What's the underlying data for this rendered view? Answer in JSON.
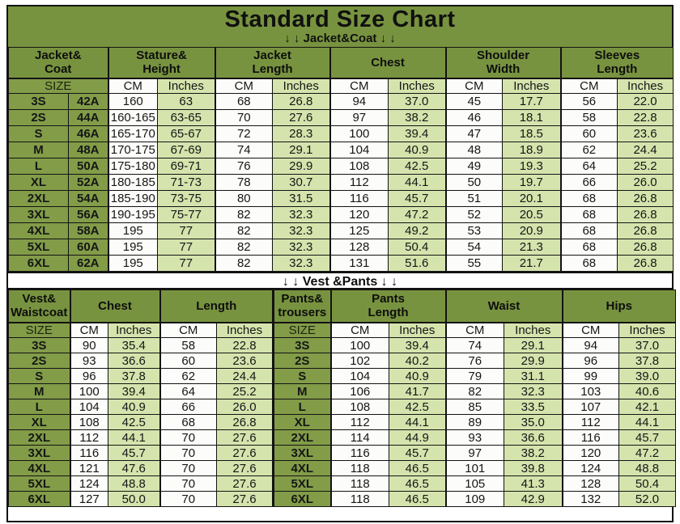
{
  "title": "Standard Size Chart",
  "banners": {
    "jacket": "↓ ↓  Jacket&Coat ↓ ↓",
    "vest": "↓ ↓  Vest &Pants ↓ ↓"
  },
  "colors": {
    "band_green": "#78933F",
    "cell_green": "#829C48",
    "pale_green": "#D5E4AD",
    "white_cell": "#FCFCFA",
    "border": "#131313"
  },
  "chart_data": [
    {
      "type": "table",
      "name": "Jacket&Coat",
      "group_headers": [
        "Jacket&\nCoat",
        "Stature&\nHeight",
        "Jacket\nLength",
        "Chest",
        "Shoulder\nWidth",
        "Sleeves\nLength"
      ],
      "unit_row": [
        "SIZE",
        "CM",
        "Inches",
        "CM",
        "Inches",
        "CM",
        "Inches",
        "CM",
        "Inches",
        "CM",
        "Inches"
      ],
      "rows": [
        {
          "size": "3S",
          "fit": "42A",
          "values": [
            "160",
            "63",
            "68",
            "26.8",
            "94",
            "37.0",
            "45",
            "17.7",
            "56",
            "22.0"
          ]
        },
        {
          "size": "2S",
          "fit": "44A",
          "values": [
            "160-165",
            "63-65",
            "70",
            "27.6",
            "97",
            "38.2",
            "46",
            "18.1",
            "58",
            "22.8"
          ]
        },
        {
          "size": "S",
          "fit": "46A",
          "values": [
            "165-170",
            "65-67",
            "72",
            "28.3",
            "100",
            "39.4",
            "47",
            "18.5",
            "60",
            "23.6"
          ]
        },
        {
          "size": "M",
          "fit": "48A",
          "values": [
            "170-175",
            "67-69",
            "74",
            "29.1",
            "104",
            "40.9",
            "48",
            "18.9",
            "62",
            "24.4"
          ]
        },
        {
          "size": "L",
          "fit": "50A",
          "values": [
            "175-180",
            "69-71",
            "76",
            "29.9",
            "108",
            "42.5",
            "49",
            "19.3",
            "64",
            "25.2"
          ]
        },
        {
          "size": "XL",
          "fit": "52A",
          "values": [
            "180-185",
            "71-73",
            "78",
            "30.7",
            "112",
            "44.1",
            "50",
            "19.7",
            "66",
            "26.0"
          ]
        },
        {
          "size": "2XL",
          "fit": "54A",
          "values": [
            "185-190",
            "73-75",
            "80",
            "31.5",
            "116",
            "45.7",
            "51",
            "20.1",
            "68",
            "26.8"
          ]
        },
        {
          "size": "3XL",
          "fit": "56A",
          "values": [
            "190-195",
            "75-77",
            "82",
            "32.3",
            "120",
            "47.2",
            "52",
            "20.5",
            "68",
            "26.8"
          ]
        },
        {
          "size": "4XL",
          "fit": "58A",
          "values": [
            "195",
            "77",
            "82",
            "32.3",
            "125",
            "49.2",
            "53",
            "20.9",
            "68",
            "26.8"
          ]
        },
        {
          "size": "5XL",
          "fit": "60A",
          "values": [
            "195",
            "77",
            "82",
            "32.3",
            "128",
            "50.4",
            "54",
            "21.3",
            "68",
            "26.8"
          ]
        },
        {
          "size": "6XL",
          "fit": "62A",
          "values": [
            "195",
            "77",
            "82",
            "32.3",
            "131",
            "51.6",
            "55",
            "21.7",
            "68",
            "26.8"
          ]
        }
      ]
    },
    {
      "type": "table",
      "name": "Vest &Pants",
      "group_headers": [
        "Vest&\nWaistcoat",
        "Chest",
        "Length",
        "Pants&\ntrousers",
        "Pants\nLength",
        "Waist",
        "Hips"
      ],
      "unit_row": [
        "SIZE",
        "CM",
        "Inches",
        "CM",
        "Inches",
        "SIZE",
        "CM",
        "Inches",
        "CM",
        "Inches",
        "CM",
        "Inches"
      ],
      "rows": [
        {
          "size": "3S",
          "vest": [
            "90",
            "35.4",
            "58",
            "22.8"
          ],
          "pants_size": "3S",
          "pants": [
            "100",
            "39.4",
            "74",
            "29.1",
            "94",
            "37.0"
          ]
        },
        {
          "size": "2S",
          "vest": [
            "93",
            "36.6",
            "60",
            "23.6"
          ],
          "pants_size": "2S",
          "pants": [
            "102",
            "40.2",
            "76",
            "29.9",
            "96",
            "37.8"
          ]
        },
        {
          "size": "S",
          "vest": [
            "96",
            "37.8",
            "62",
            "24.4"
          ],
          "pants_size": "S",
          "pants": [
            "104",
            "40.9",
            "79",
            "31.1",
            "99",
            "39.0"
          ]
        },
        {
          "size": "M",
          "vest": [
            "100",
            "39.4",
            "64",
            "25.2"
          ],
          "pants_size": "M",
          "pants": [
            "106",
            "41.7",
            "82",
            "32.3",
            "103",
            "40.6"
          ]
        },
        {
          "size": "L",
          "vest": [
            "104",
            "40.9",
            "66",
            "26.0"
          ],
          "pants_size": "L",
          "pants": [
            "108",
            "42.5",
            "85",
            "33.5",
            "107",
            "42.1"
          ]
        },
        {
          "size": "XL",
          "vest": [
            "108",
            "42.5",
            "68",
            "26.8"
          ],
          "pants_size": "XL",
          "pants": [
            "112",
            "44.1",
            "89",
            "35.0",
            "112",
            "44.1"
          ]
        },
        {
          "size": "2XL",
          "vest": [
            "112",
            "44.1",
            "70",
            "27.6"
          ],
          "pants_size": "2XL",
          "pants": [
            "114",
            "44.9",
            "93",
            "36.6",
            "116",
            "45.7"
          ]
        },
        {
          "size": "3XL",
          "vest": [
            "116",
            "45.7",
            "70",
            "27.6"
          ],
          "pants_size": "3XL",
          "pants": [
            "116",
            "45.7",
            "97",
            "38.2",
            "120",
            "47.2"
          ]
        },
        {
          "size": "4XL",
          "vest": [
            "121",
            "47.6",
            "70",
            "27.6"
          ],
          "pants_size": "4XL",
          "pants": [
            "118",
            "46.5",
            "101",
            "39.8",
            "124",
            "48.8"
          ]
        },
        {
          "size": "5XL",
          "vest": [
            "124",
            "48.8",
            "70",
            "27.6"
          ],
          "pants_size": "5XL",
          "pants": [
            "118",
            "46.5",
            "105",
            "41.3",
            "128",
            "50.4"
          ]
        },
        {
          "size": "6XL",
          "vest": [
            "127",
            "50.0",
            "70",
            "27.6"
          ],
          "pants_size": "6XL",
          "pants": [
            "118",
            "46.5",
            "109",
            "42.9",
            "132",
            "52.0"
          ]
        }
      ]
    }
  ]
}
